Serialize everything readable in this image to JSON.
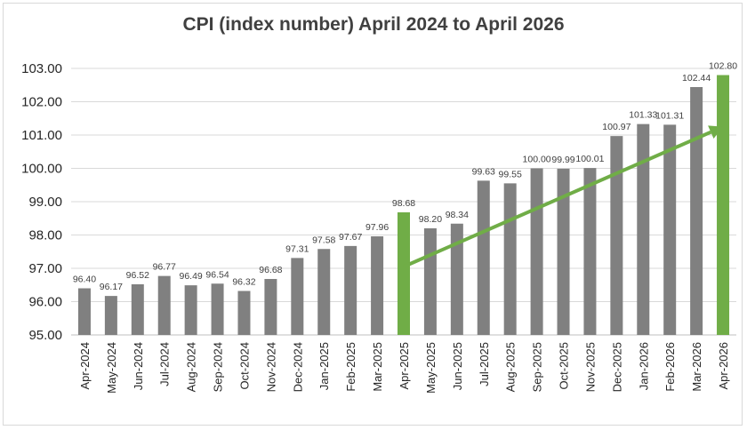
{
  "chart_data": {
    "type": "bar",
    "title": "CPI (index number) April 2024 to April 2026",
    "xlabel": "",
    "ylabel": "",
    "ylim": [
      95,
      103
    ],
    "y_ticks": [
      "95.00",
      "96.00",
      "97.00",
      "98.00",
      "99.00",
      "100.00",
      "101.00",
      "102.00",
      "103.00"
    ],
    "categories": [
      "Apr-2024",
      "May-2024",
      "Jun-2024",
      "Jul-2024",
      "Aug-2024",
      "Sep-2024",
      "Oct-2024",
      "Nov-2024",
      "Dec-2024",
      "Jan-2025",
      "Feb-2025",
      "Mar-2025",
      "Apr-2025",
      "May-2025",
      "Jun-2025",
      "Jul-2025",
      "Aug-2025",
      "Sep-2025",
      "Oct-2025",
      "Nov-2025",
      "Dec-2025",
      "Jan-2026",
      "Feb-2026",
      "Mar-2026",
      "Apr-2026"
    ],
    "values": [
      96.4,
      96.17,
      96.52,
      96.77,
      96.49,
      96.54,
      96.32,
      96.68,
      97.31,
      97.58,
      97.67,
      97.96,
      98.68,
      98.2,
      98.34,
      99.63,
      99.55,
      100.0,
      99.99,
      100.01,
      100.97,
      101.33,
      101.31,
      102.44,
      102.8
    ],
    "data_labels": [
      "96.40",
      "96.17",
      "96.52",
      "96.77",
      "96.49",
      "96.54",
      "96.32",
      "96.68",
      "97.31",
      "97.58",
      "97.67",
      "97.96",
      "98.68",
      "98.20",
      "98.34",
      "99.63",
      "99.55",
      "100.00",
      "99.99",
      "100.01",
      "100.97",
      "101.33",
      "101.31",
      "102.44",
      "102.80"
    ],
    "highlight_categories": [
      "Apr-2025",
      "Apr-2026"
    ],
    "trend_arrow": {
      "from_category": "Apr-2025",
      "from_value": 97.05,
      "to_category": "Apr-2026",
      "to_value": 101.25
    },
    "colors": {
      "bar": "#808080",
      "highlight": "#70ad47",
      "arrow": "#70ad47",
      "grid": "#d9d9d9",
      "text": "#404040"
    },
    "grid": true,
    "legend": "none"
  }
}
